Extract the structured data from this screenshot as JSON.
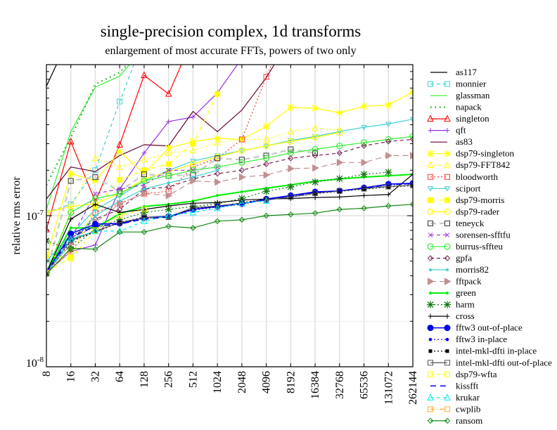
{
  "chart_data": {
    "type": "line",
    "title": "single-precision complex, 1d transforms",
    "subtitle": "enlargement of most accurate FFTs, powers of two only",
    "xlabel": "",
    "ylabel": "relative rms error",
    "yscale": "log",
    "ylim": [
      1e-08,
      1e-06
    ],
    "ytick_labels": [
      {
        "base": "10",
        "exp": "-8",
        "value": 1e-08
      },
      {
        "base": "10",
        "exp": "-7",
        "value": 1e-07
      }
    ],
    "x": [
      "8",
      "16",
      "32",
      "64",
      "128",
      "256",
      "512",
      "1024",
      "2048",
      "4096",
      "8192",
      "16384",
      "32768",
      "65536",
      "131072",
      "262144"
    ],
    "grid": true,
    "legend_position": "right",
    "series": [
      {
        "name": "as117",
        "color": "#000000",
        "dash": "",
        "marker": "none",
        "values": [
          7.2e-07,
          1.6e-06,
          null,
          null,
          null,
          null,
          null,
          null,
          null,
          null,
          null,
          null,
          null,
          null,
          null,
          null
        ]
      },
      {
        "name": "monnier",
        "color": "#40d0d0",
        "dash": "5,4",
        "marker": "square",
        "values": [
          1.05e-07,
          1.19e-07,
          2e-07,
          5.7e-07,
          1.5e-06,
          null,
          null,
          null,
          null,
          null,
          null,
          null,
          null,
          null,
          null,
          null
        ]
      },
      {
        "name": "glassman",
        "color": "#33ee33",
        "dash": "",
        "marker": "none",
        "values": [
          1.1e-07,
          3.6e-07,
          7.1e-07,
          8.4e-07,
          1.3e-06,
          null,
          null,
          null,
          null,
          null,
          null,
          null,
          null,
          null,
          null,
          null
        ]
      },
      {
        "name": "napack",
        "color": "#22aa22",
        "dash": "1.5,5",
        "marker": "none",
        "width": 2.5,
        "values": [
          1.6e-07,
          3.3e-07,
          7.4e-07,
          8.9e-07,
          1.3e-06,
          null,
          null,
          null,
          null,
          null,
          null,
          null,
          null,
          null,
          null,
          null
        ]
      },
      {
        "name": "singleton",
        "color": "#ff0000",
        "dash": "",
        "marker": "triangle",
        "values": [
          8.1e-08,
          3.1e-07,
          1.24e-07,
          2.95e-07,
          8.5e-07,
          6.4e-07,
          1.5e-06,
          null,
          null,
          null,
          null,
          null,
          null,
          null,
          null,
          null
        ]
      },
      {
        "name": "qft",
        "color": "#9933dd",
        "dash": "",
        "marker": "plus",
        "values": [
          4.2e-08,
          5.8e-08,
          6.4e-08,
          1.5e-07,
          2.6e-07,
          4.2e-07,
          4.5e-07,
          6.5e-07,
          1.1e-06,
          null,
          null,
          null,
          null,
          null,
          null,
          null
        ]
      },
      {
        "name": "as83",
        "color": "#660033",
        "dash": "",
        "marker": "none",
        "values": [
          1.29e-07,
          2.1e-07,
          1.96e-07,
          2.5e-07,
          2.95e-07,
          2.9e-07,
          4.9e-07,
          3.6e-07,
          5e-07,
          8.2e-07,
          1.5e-06,
          null,
          null,
          null,
          null,
          null
        ]
      },
      {
        "name": "dsp79-singleton",
        "color": "#ffff00",
        "dash": "",
        "marker": "asterisk",
        "values": [
          5.3e-08,
          1.9e-07,
          1.7e-07,
          2.65e-07,
          1.9e-07,
          2.8e-07,
          3.1e-07,
          3.25e-07,
          3.2e-07,
          3.9e-07,
          5.2e-07,
          5.15e-07,
          4.8e-07,
          5.3e-07,
          5.4e-07,
          6.6e-07
        ]
      },
      {
        "name": "dsp79-FFT842",
        "color": "#ffff00",
        "dash": "2,3",
        "marker": "triangle",
        "values": [
          4.2e-08,
          1.1e-07,
          2.4e-07,
          2.1e-07,
          2.35e-07,
          2.6e-07,
          2.7e-07,
          3.05e-07,
          3.2e-07,
          3.2e-07,
          3.6e-07,
          3.8e-07,
          3.7e-07,
          null,
          null,
          null
        ]
      },
      {
        "name": "bloodworth",
        "color": "#ff3333",
        "dash": "2,3",
        "marker": "square",
        "values": [
          4.2e-08,
          6e-08,
          1.05e-07,
          1.2e-07,
          1.4e-07,
          1.45e-07,
          2.1e-07,
          2.4e-07,
          3.2e-07,
          8.3e-07,
          2e-06,
          null,
          null,
          null,
          null,
          null
        ]
      },
      {
        "name": "sciport",
        "color": "#40d0d0",
        "dash": "",
        "marker": "invtriangle",
        "values": [
          5e-08,
          7.5e-08,
          1.1e-07,
          1.35e-07,
          1.7e-07,
          2e-07,
          2.3e-07,
          2.5e-07,
          2.7e-07,
          2.9e-07,
          3.15e-07,
          3.35e-07,
          3.6e-07,
          3.85e-07,
          4.05e-07,
          4.35e-07
        ]
      },
      {
        "name": "dsp79-morris",
        "color": "#ffff00",
        "dash": "6,3,1,3",
        "marker": "filledsquare",
        "values": [
          4.2e-08,
          5.3e-08,
          1.15e-07,
          1.73e-07,
          2e-07,
          2.2e-07,
          3e-07,
          6.4e-07,
          null,
          null,
          null,
          null,
          null,
          null,
          null,
          null
        ]
      },
      {
        "name": "dsp79-rader",
        "color": "#ffff00",
        "dash": "",
        "marker": "circle",
        "values": [
          1.05e-07,
          1.15e-07,
          1.2e-07,
          1.4e-07,
          1.75e-07,
          1.95e-07,
          2.2e-07,
          2.45e-07,
          2.7e-07,
          2.9e-07,
          3.1e-07,
          3.3e-07,
          3.55e-07,
          null,
          null,
          null
        ]
      },
      {
        "name": "teneyck",
        "color": "#cccccc",
        "dash": "8,5",
        "marker": "darksquare",
        "width": 2.5,
        "values": [
          4.2e-08,
          1.7e-07,
          1.8e-07,
          1.45e-07,
          1.88e-07,
          1.84e-07,
          1.86e-07,
          2.4e-07,
          2.35e-07,
          2.5e-07,
          2.75e-07,
          2.6e-07,
          null,
          null,
          null,
          null
        ]
      },
      {
        "name": "sorensen-sfftfu",
        "color": "#9933dd",
        "dash": "5,4",
        "marker": "x",
        "values": [
          4.2e-08,
          7e-08,
          1.4e-07,
          1.5e-07,
          1.6e-07,
          2e-07,
          2e-07,
          2.1e-07,
          null,
          null,
          null,
          null,
          null,
          null,
          null,
          null
        ]
      },
      {
        "name": "burrus-sffteu",
        "color": "#33ee33",
        "dash": "",
        "marker": "circle",
        "values": [
          4.2e-08,
          1.05e-07,
          1.3e-07,
          1.4e-07,
          1.7e-07,
          1.84e-07,
          2e-07,
          2.1e-07,
          2.25e-07,
          2.4e-07,
          2.6e-07,
          2.75e-07,
          2.9e-07,
          3.05e-07,
          3.2e-07,
          3.35e-07
        ]
      },
      {
        "name": "gpfa",
        "color": "#772255",
        "dash": "5,4",
        "marker": "diamond",
        "values": [
          4.2e-08,
          7e-08,
          9.5e-08,
          1.1e-07,
          1.5e-07,
          1.55e-07,
          1.75e-07,
          1.9e-07,
          2e-07,
          2.2e-07,
          2.4e-07,
          2.5e-07,
          2.6e-07,
          2.9e-07,
          3.1e-07,
          3.2e-07
        ]
      },
      {
        "name": "morris82",
        "color": "#40d0d0",
        "dash": "",
        "marker": "dot",
        "values": [
          4.2e-08,
          6.5e-08,
          1e-07,
          1.25e-07,
          1.5e-07,
          1.65e-07,
          1.8e-07,
          2e-07,
          null,
          null,
          null,
          null,
          null,
          null,
          null,
          null
        ]
      },
      {
        "name": "fftpack",
        "color": "#c09090",
        "dash": "8,5",
        "marker": "triright",
        "values": [
          4.2e-08,
          6.5e-08,
          9e-08,
          1.2e-07,
          1.4e-07,
          1.36e-07,
          1.7e-07,
          1.67e-07,
          1.8e-07,
          1.86e-07,
          2.05e-07,
          2.07e-07,
          2.25e-07,
          2.25e-07,
          2.5e-07,
          2.5e-07
        ]
      },
      {
        "name": "green",
        "color": "#00ee00",
        "dash": "",
        "marker": "dot",
        "width": 2,
        "values": [
          4.2e-08,
          8.3e-08,
          8.3e-08,
          1.03e-07,
          1.15e-07,
          1.19e-07,
          1.25e-07,
          1.36e-07,
          1.44e-07,
          1.52e-07,
          1.6e-07,
          1.69e-07,
          1.75e-07,
          1.8e-07,
          1.84e-07,
          1.88e-07
        ]
      },
      {
        "name": "harm",
        "color": "#117711",
        "dash": "2,3",
        "marker": "asterisk",
        "values": [
          6.8e-08,
          6e-08,
          8.2e-08,
          9.4e-08,
          1.05e-07,
          1.1e-07,
          1.15e-07,
          1.2e-07,
          1.3e-07,
          1.45e-07,
          1.55e-07,
          1.67e-07,
          1.76e-07,
          1.88e-07,
          1.94e-07,
          null
        ]
      },
      {
        "name": "cross",
        "color": "#000000",
        "dash": "",
        "marker": "plus",
        "values": [
          4.2e-08,
          9.5e-08,
          1.19e-07,
          1.05e-07,
          1.1e-07,
          1.16e-07,
          1.21e-07,
          1.22e-07,
          1.27e-07,
          1.29e-07,
          1.3e-07,
          1.32e-07,
          1.33e-07,
          1.36e-07,
          1.38e-07,
          1.88e-07
        ]
      },
      {
        "name": "fftw3 out-of-place",
        "color": "#0000ee",
        "dash": "",
        "marker": "bigdot",
        "width": 1.5,
        "values": [
          4.2e-08,
          7.6e-08,
          8.8e-08,
          8.9e-08,
          9.7e-08,
          9.9e-08,
          1.1e-07,
          1.15e-07,
          1.2e-07,
          1.29e-07,
          1.36e-07,
          1.44e-07,
          1.46e-07,
          1.53e-07,
          1.62e-07,
          1.64e-07
        ]
      },
      {
        "name": "fftw3 in-place",
        "color": "#0000ee",
        "dash": "2,3",
        "marker": "smalldot",
        "values": [
          4.2e-08,
          7.4e-08,
          8.6e-08,
          8.8e-08,
          9.6e-08,
          9.8e-08,
          1.09e-07,
          1.14e-07,
          1.19e-07,
          1.28e-07,
          1.35e-07,
          1.43e-07,
          1.45e-07,
          1.52e-07,
          1.6e-07,
          1.62e-07
        ]
      },
      {
        "name": "intel-mkl-dfti in-place",
        "color": "#000000",
        "dash": "2,3",
        "marker": "smallsquare",
        "values": [
          4.2e-08,
          6.8e-08,
          7.8e-08,
          9e-08,
          9.8e-08,
          9.7e-08,
          1.12e-07,
          1.15e-07,
          1.22e-07,
          1.28e-07,
          1.33e-07,
          1.4e-07,
          1.45e-07,
          1.5e-07,
          1.55e-07,
          1.58e-07
        ]
      },
      {
        "name": "intel-mkl-dfti out-of-place",
        "color": "#555555",
        "dash": "",
        "marker": "square",
        "values": [
          4.2e-08,
          6.9e-08,
          7.9e-08,
          9e-08,
          9.7e-08,
          9.8e-08,
          1.13e-07,
          1.16e-07,
          1.21e-07,
          1.27e-07,
          1.33e-07,
          1.41e-07,
          1.46e-07,
          1.51e-07,
          1.56e-07,
          1.59e-07
        ]
      },
      {
        "name": "dsp79-wfta",
        "color": "#ffff00",
        "dash": "5,4",
        "marker": "square",
        "values": [
          5.5e-08,
          5.2e-08,
          8e-08,
          1e-07,
          1.1e-07,
          null,
          null,
          null,
          null,
          null,
          null,
          null,
          null,
          null,
          null,
          null
        ]
      },
      {
        "name": "kissfft",
        "color": "#0000ee",
        "dash": "8,6",
        "marker": "none",
        "width": 1.5,
        "values": [
          4.2e-08,
          7.2e-08,
          8.5e-08,
          8.8e-08,
          9.5e-08,
          9.8e-08,
          1.1e-07,
          1.15e-07,
          1.2e-07,
          1.28e-07,
          1.35e-07,
          1.43e-07,
          1.46e-07,
          1.52e-07,
          1.6e-07,
          1.63e-07
        ]
      },
      {
        "name": "krukar",
        "color": "#00eeee",
        "dash": "5,4",
        "marker": "triangle",
        "values": [
          4.2e-08,
          7e-08,
          7.9e-08,
          7.9e-08,
          9.2e-08,
          1e-07,
          1.05e-07,
          1.12e-07,
          1.21e-07,
          1.25e-07,
          null,
          null,
          null,
          null,
          null,
          null
        ]
      },
      {
        "name": "cwplib",
        "color": "#ffaa33",
        "dash": "6,3,1,3",
        "marker": "square",
        "values": [
          4.2e-08,
          5.8e-08,
          null,
          null,
          null,
          null,
          null,
          null,
          null,
          null,
          null,
          null,
          null,
          null,
          null,
          null
        ]
      },
      {
        "name": "ransom",
        "color": "#118811",
        "dash": "",
        "marker": "diamond",
        "values": [
          4.1e-08,
          6.1e-08,
          6e-08,
          7.8e-08,
          7.8e-08,
          8.5e-08,
          8.3e-08,
          9.2e-08,
          9.4e-08,
          1e-07,
          1.02e-07,
          1.04e-07,
          1.1e-07,
          1.12e-07,
          1.16e-07,
          1.19e-07
        ]
      }
    ]
  }
}
